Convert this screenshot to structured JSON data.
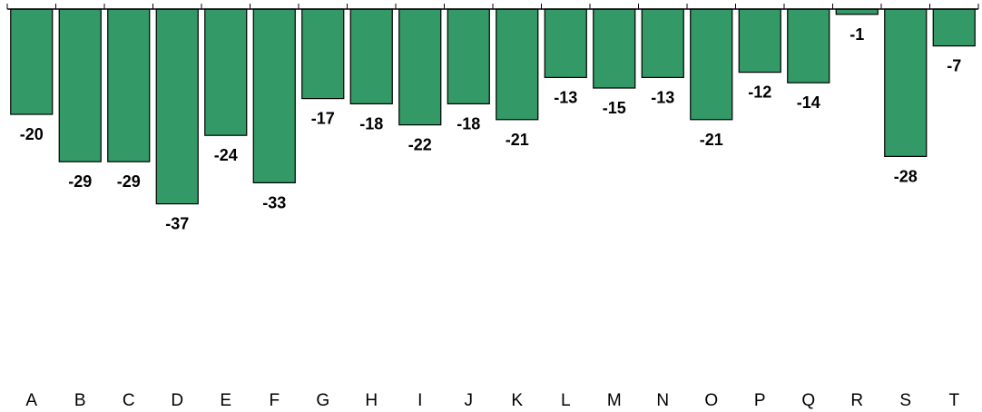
{
  "chart_data": {
    "type": "bar",
    "orientation": "vertical",
    "categories": [
      "A",
      "B",
      "C",
      "D",
      "E",
      "F",
      "G",
      "H",
      "I",
      "J",
      "K",
      "L",
      "M",
      "N",
      "O",
      "P",
      "Q",
      "R",
      "S",
      "T"
    ],
    "values": [
      -20,
      -29,
      -29,
      -37,
      -24,
      -33,
      -17,
      -18,
      -22,
      -18,
      -21,
      -13,
      -15,
      -13,
      -21,
      -12,
      -14,
      -1,
      -28,
      -7
    ],
    "value_labels": [
      "-20",
      "-29",
      "-29",
      "-37",
      "-24",
      "-33",
      "-17",
      "-18",
      "-22",
      "-18",
      "-21",
      "-13",
      "-15",
      "-13",
      "-21",
      "-12",
      "-14",
      "-1",
      "-28",
      "-7"
    ],
    "title": "",
    "xlabel": "",
    "ylabel": "",
    "ylim": [
      -70,
      0
    ],
    "grid": false,
    "legend": "none",
    "bar_color": "#339966",
    "edge_color": "#000000"
  }
}
